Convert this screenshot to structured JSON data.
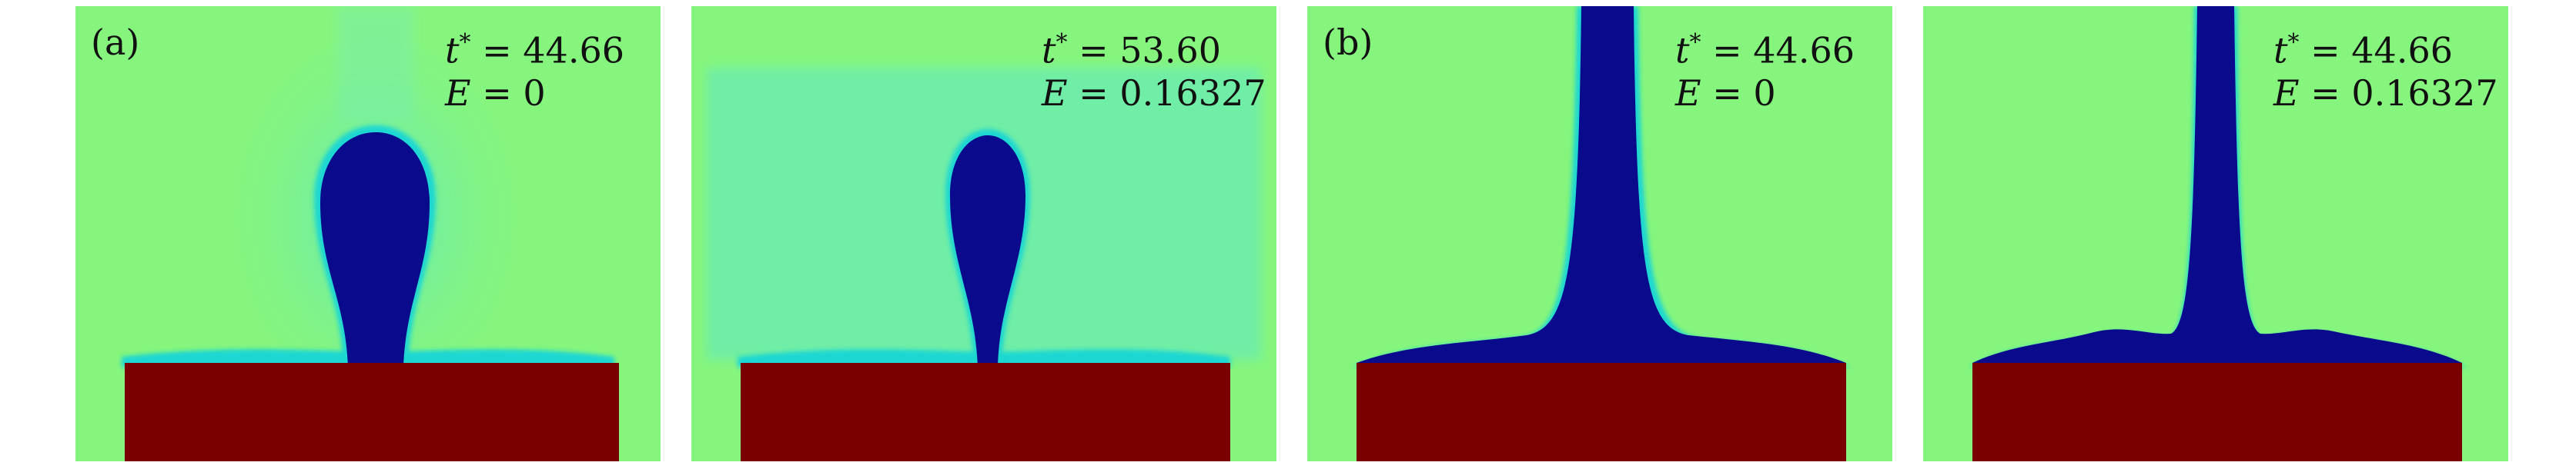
{
  "colors": {
    "background": "#86f57d",
    "liquid": "#0a0a8c",
    "interface": "#1ad7d2",
    "substrate": "#7a0000"
  },
  "panels": [
    {
      "tag": "(a)",
      "t_label": "t",
      "t_sup": "*",
      "t_value": "= 44.66",
      "e_label": "E",
      "e_value": "= 0",
      "shape": "droplet-on-substrate"
    },
    {
      "tag": "",
      "t_label": "t",
      "t_sup": "*",
      "t_value": "= 53.60",
      "e_label": "E",
      "e_value": "= 0.16327",
      "shape": "droplet-on-substrate"
    },
    {
      "tag": "(b)",
      "t_label": "t",
      "t_sup": "*",
      "t_value": "= 44.66",
      "e_label": "E",
      "e_value": "= 0",
      "shape": "jet-with-spreading-film"
    },
    {
      "tag": "",
      "t_label": "t",
      "t_sup": "*",
      "t_value": "= 44.66",
      "e_label": "E",
      "e_value": "= 0.16327",
      "shape": "jet-with-spreading-film"
    }
  ]
}
